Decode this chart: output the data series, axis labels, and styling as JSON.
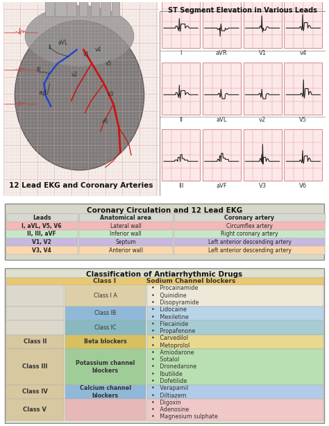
{
  "title_top": "ST Segment Elevation in Various Leads",
  "heart_title": "12 Lead EKG and Coronary Arteries",
  "ekg_leads": [
    "I",
    "aVR",
    "V1",
    "v4",
    "II",
    "aVL",
    "v2",
    "V5",
    "III",
    "aVF",
    "V3",
    "V6"
  ],
  "coronary_title": "Coronary Circulation and 12 Lead EKG",
  "coronary_headers": [
    "Leads",
    "Anatomical area",
    "Coronary artery"
  ],
  "coronary_rows": [
    [
      "I, aVL, V5, V6",
      "Lateral wall",
      "Circumflex artery"
    ],
    [
      "II, III, aVF",
      "Inferior wall",
      "Right coronary artery"
    ],
    [
      "V1, V2",
      "Septum",
      "Left anterior descending artery"
    ],
    [
      "V3, V4",
      "Anterior wall",
      "Left anterior descending artery"
    ]
  ],
  "coronary_row_colors": [
    "#f4b8b8",
    "#c8e6c9",
    "#c8b8e0",
    "#f9d8b0"
  ],
  "coronary_header_color": "#d8d8d0",
  "coronary_outer_color": "#d8d8c8",
  "drugs_title": "Classification of Antiarrhythmic Drugs",
  "drugs_outer_color": "#e0e0d0",
  "drugs_data": [
    {
      "class": "Class I",
      "type": "Sodium Channel blockers",
      "drugs": [],
      "c1": "#d8c8a0",
      "c2": "#e8c870",
      "c3": "#e8c870"
    },
    {
      "class": "",
      "type": "Class I A",
      "drugs": [
        "Procainamide",
        "Quinidine",
        "Disopyramide"
      ],
      "c1": "#ddd8cc",
      "c2": "#ddd0a8",
      "c3": "#ede8d8"
    },
    {
      "class": "",
      "type": "Class IB",
      "drugs": [
        "Lidocaine",
        "Mexiletine"
      ],
      "c1": "#ddd8cc",
      "c2": "#90b8d8",
      "c3": "#b8d4e8"
    },
    {
      "class": "",
      "type": "Class IC",
      "drugs": [
        "Flecainide",
        "Propafenone"
      ],
      "c1": "#ddd8cc",
      "c2": "#88b8c0",
      "c3": "#a8ccd4"
    },
    {
      "class": "Class II",
      "type": "Beta blockers",
      "drugs": [
        "Carvedilol",
        "Metoprolol"
      ],
      "c1": "#d8c8a0",
      "c2": "#d8c060",
      "c3": "#e8d890"
    },
    {
      "class": "Class III",
      "type": "Potassium channel\nblockers",
      "drugs": [
        "Amiodarone",
        "Sotalol",
        "Dronedarone",
        "Ibutilide",
        "Dofetilide"
      ],
      "c1": "#d8c8a0",
      "c2": "#a0cc98",
      "c3": "#b8e0b0"
    },
    {
      "class": "Class IV",
      "type": "Calcium channel\nblockers",
      "drugs": [
        "Verapamil",
        "Diltiazem"
      ],
      "c1": "#d8c8a0",
      "c2": "#90b8d8",
      "c3": "#b0cce8"
    },
    {
      "class": "Class V",
      "type": "",
      "drugs": [
        "Digoxin",
        "Adenosine",
        "Magnesium sulphate"
      ],
      "c1": "#d8c8a0",
      "c2": "#e8b8b8",
      "c3": "#f0c8c8"
    }
  ],
  "bg_color": "#ffffff"
}
